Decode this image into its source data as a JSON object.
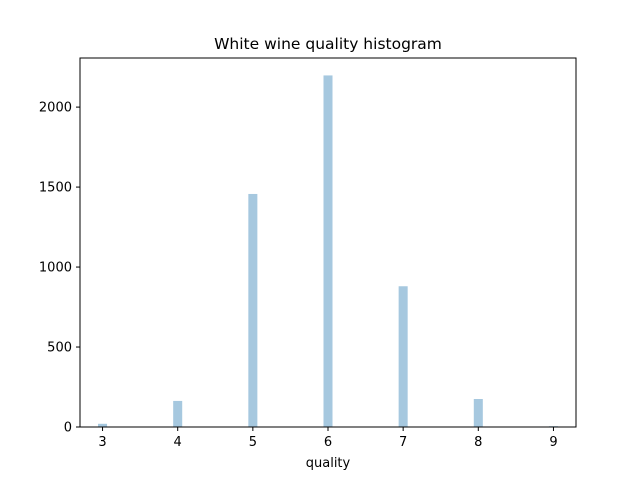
{
  "chart_data": {
    "type": "bar",
    "title": "White wine quality histogram",
    "xlabel": "quality",
    "ylabel": "",
    "x_ticks": [
      "3",
      "4",
      "5",
      "6",
      "7",
      "8",
      "9"
    ],
    "y_ticks": [
      "0",
      "500",
      "1000",
      "1500",
      "2000"
    ],
    "xlim": [
      2.7,
      9.3
    ],
    "ylim": [
      0,
      2307
    ],
    "bin_width": 0.12,
    "bar_color": "#a6c8df",
    "legend": "none",
    "grid": false,
    "categories": [
      "3",
      "4",
      "5",
      "6",
      "7",
      "8",
      "9"
    ],
    "values": [
      20,
      163,
      1457,
      2198,
      880,
      175,
      5
    ]
  }
}
